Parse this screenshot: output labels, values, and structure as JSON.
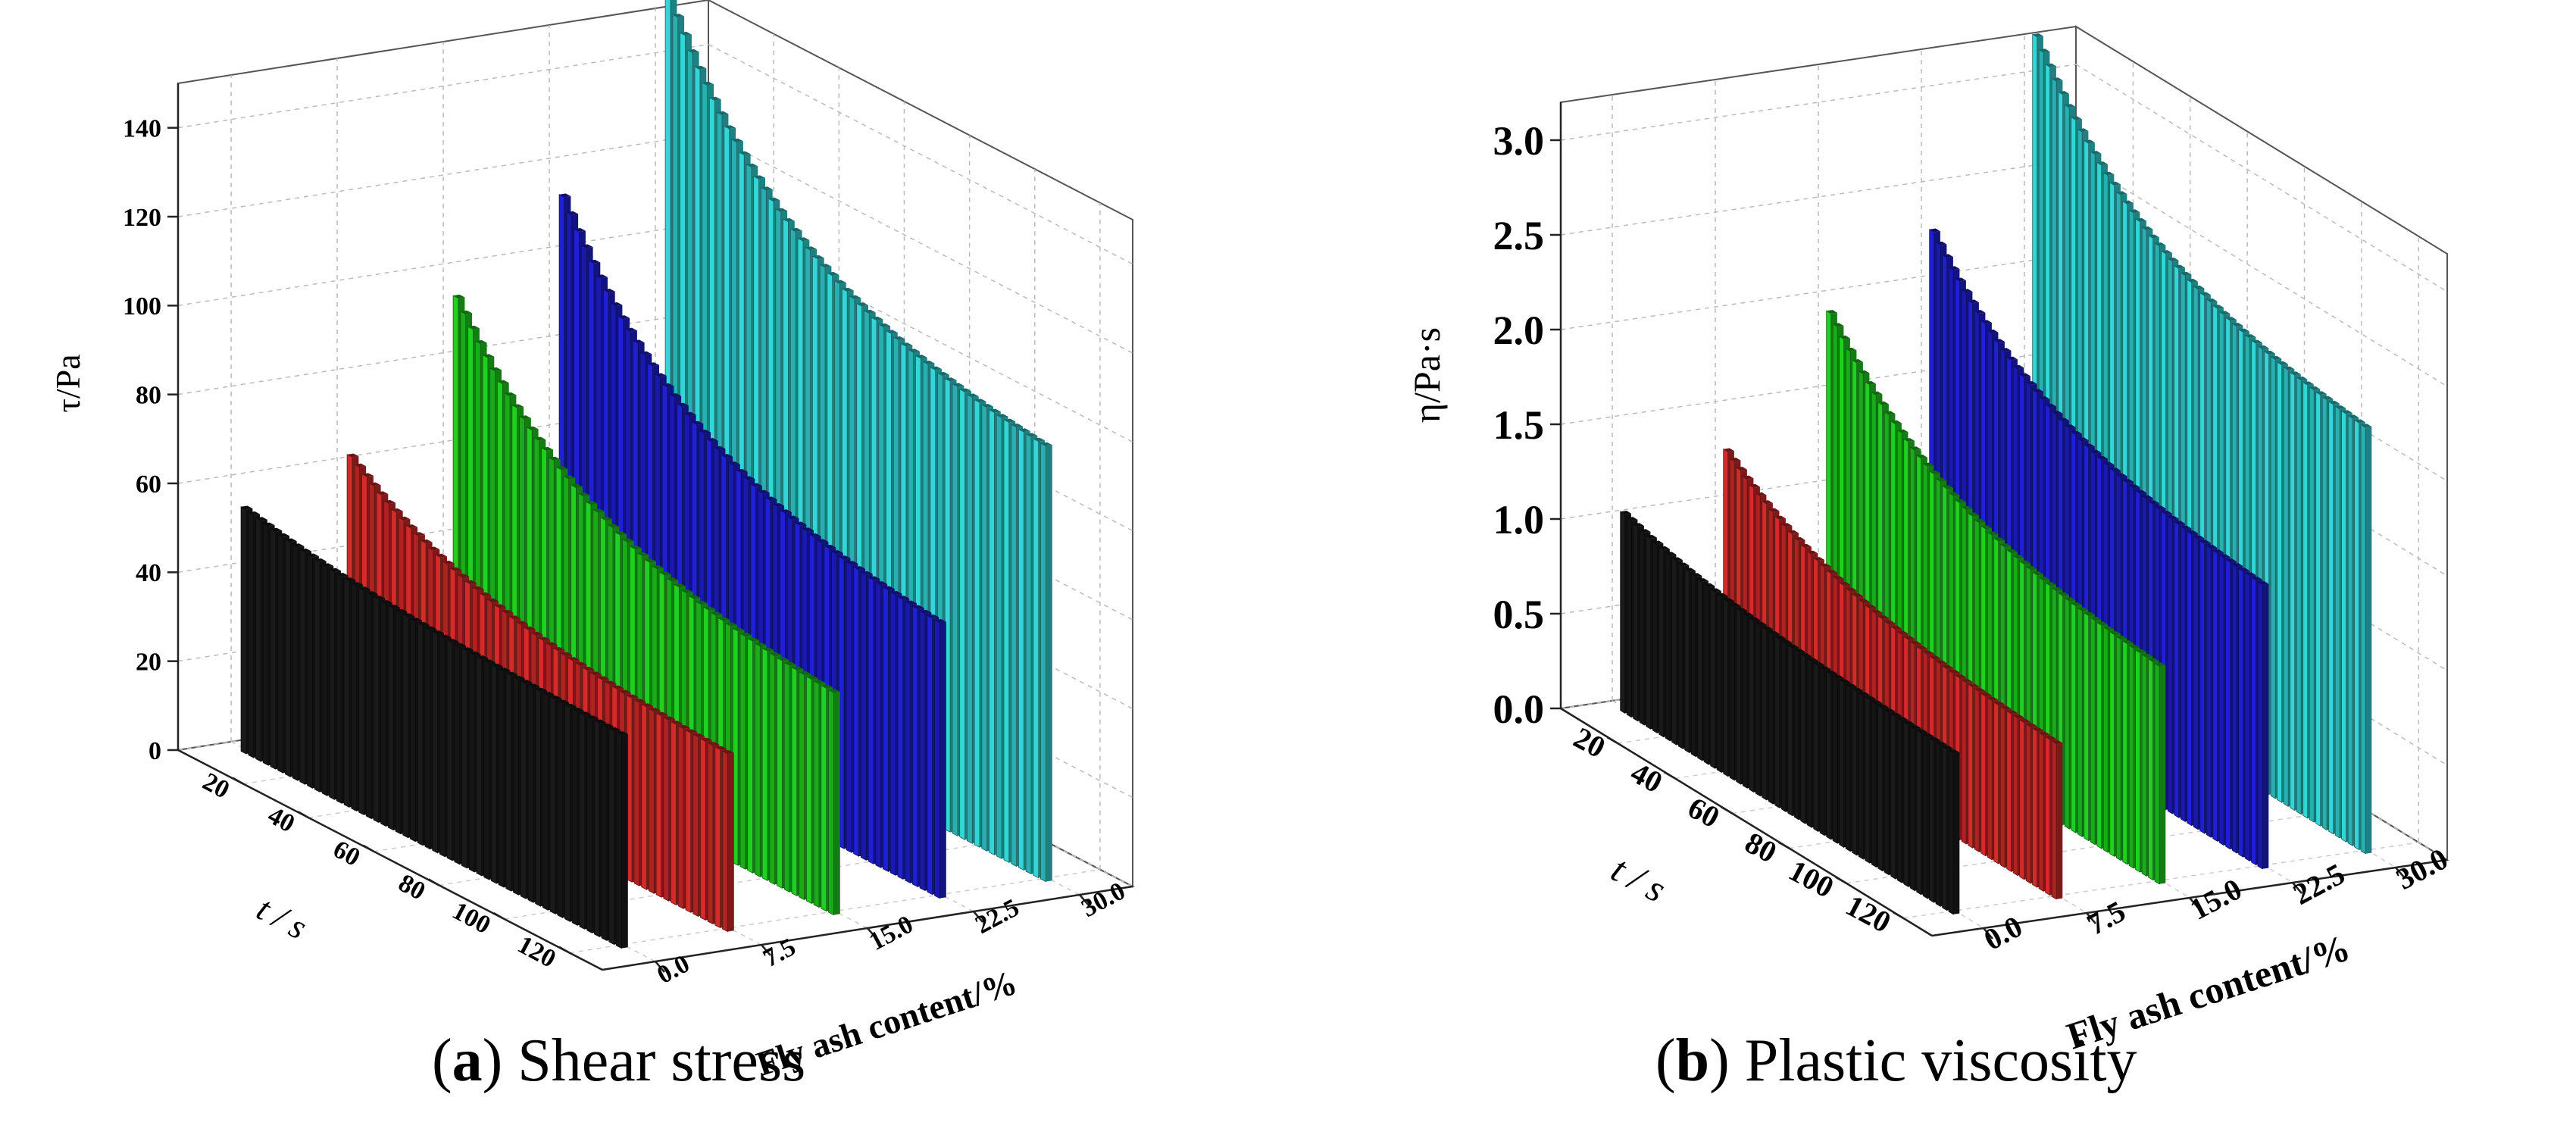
{
  "figure": {
    "panels": [
      {
        "caption_letter": "a",
        "caption_text": "Shear stress",
        "chart_data": {
          "type": "bar3d",
          "title": "Shear stress",
          "zlabel": "τ/Pa",
          "tlabel": "t / s",
          "flabel": "Fly ash content/%",
          "z_ticks": [
            "0",
            "20",
            "40",
            "60",
            "80",
            "100",
            "120",
            "140"
          ],
          "t_ticks": [
            "20",
            "40",
            "60",
            "80",
            "100",
            "120"
          ],
          "f_ticks": [
            "0.0",
            "7.5",
            "15.0",
            "22.5",
            "30.0"
          ],
          "zlim": [
            0,
            150
          ],
          "tlim": [
            0,
            130
          ],
          "series": [
            {
              "name": "0.0",
              "color": "#1a1a1a",
              "values_start": 55,
              "values_end": 48
            },
            {
              "name": "7.5",
              "color": "#d42a2a",
              "values_start": 63,
              "values_end": 40
            },
            {
              "name": "15.0",
              "color": "#20d020",
              "values_start": 95,
              "values_end": 50
            },
            {
              "name": "22.5",
              "color": "#1f1fd4",
              "values_start": 114,
              "values_end": 62
            },
            {
              "name": "30.0",
              "color": "#32d6d6",
              "values_start": 155,
              "values_end": 98
            }
          ]
        }
      },
      {
        "caption_letter": "b",
        "caption_text": "Plastic viscosity",
        "chart_data": {
          "type": "bar3d",
          "title": "Plastic viscosity",
          "zlabel": "η/Pa·s",
          "tlabel": "t / s",
          "flabel": "Fly ash content/%",
          "z_ticks": [
            "0.0",
            "0.5",
            "1.0",
            "1.5",
            "2.0",
            "2.5",
            "3.0"
          ],
          "t_ticks": [
            "20",
            "40",
            "60",
            "80",
            "100",
            "120"
          ],
          "f_ticks": [
            "0.0",
            "7.5",
            "15.0",
            "22.5",
            "30.0"
          ],
          "zlim": [
            0,
            3.2
          ],
          "tlim": [
            0,
            130
          ],
          "series": [
            {
              "name": "0.0",
              "color": "#1a1a1a",
              "values_start": 1.05,
              "values_end": 0.85
            },
            {
              "name": "7.5",
              "color": "#d42a2a",
              "values_start": 1.3,
              "values_end": 0.82
            },
            {
              "name": "15.0",
              "color": "#20d020",
              "values_start": 1.95,
              "values_end": 1.15
            },
            {
              "name": "22.5",
              "color": "#1f1fd4",
              "values_start": 2.3,
              "values_end": 1.5
            },
            {
              "name": "30.0",
              "color": "#32d6d6",
              "values_start": 3.25,
              "values_end": 2.25
            }
          ]
        }
      }
    ]
  }
}
